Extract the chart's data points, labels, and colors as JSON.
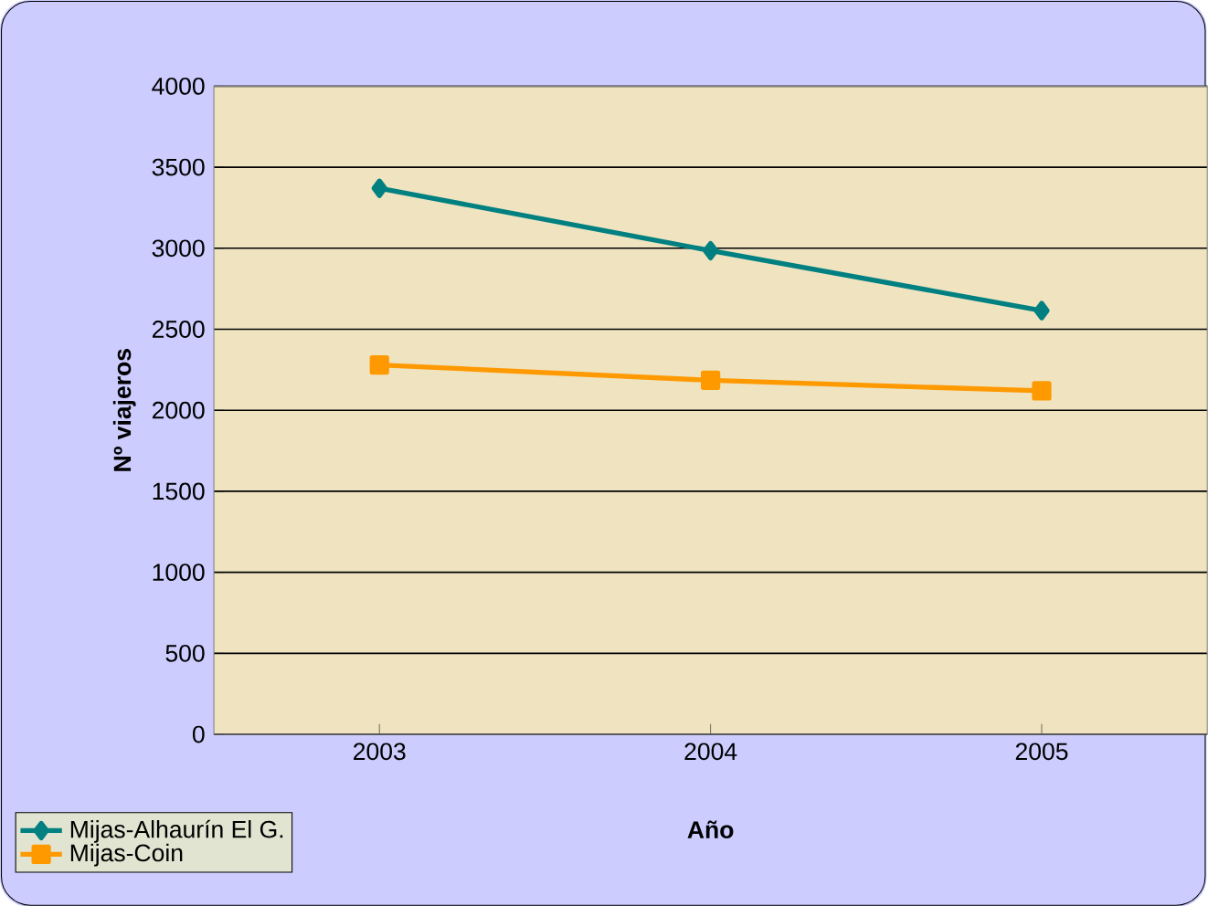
{
  "chart_data": {
    "type": "line",
    "xlabel": "Año",
    "ylabel": "Nº viajeros",
    "categories": [
      "2003",
      "2004",
      "2005"
    ],
    "series": [
      {
        "name": "Mijas-Alhaurín El G.",
        "color": "#008080",
        "values": [
          3370,
          2985,
          2615
        ],
        "marker": "diamond"
      },
      {
        "name": "Mijas-Coin",
        "color": "#ff9900",
        "values": [
          2280,
          2185,
          2120
        ],
        "marker": "square"
      }
    ],
    "ylim": [
      0,
      4000
    ],
    "yticks": [
      0,
      500,
      1000,
      1500,
      2000,
      2500,
      3000,
      3500,
      4000
    ],
    "grid": "y",
    "legend": "bottom left"
  }
}
